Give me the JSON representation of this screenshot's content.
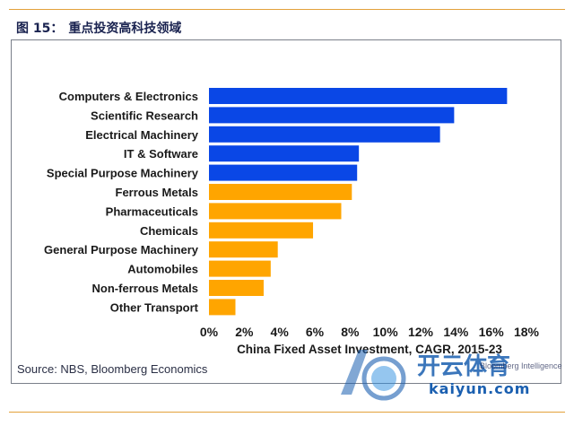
{
  "figure": {
    "number": "图 15：",
    "title": "重点投资高科技领域"
  },
  "source": "Source: NBS, Bloomberg Economics",
  "watermark": {
    "brand": "开云体育",
    "url": "kaiyun.com",
    "small": "Bloomberg Intelligence"
  },
  "colors": {
    "blue": "#0a47e6",
    "orange": "#ffa500",
    "axis_text": "#1a1a1a"
  },
  "chart_data": {
    "type": "bar",
    "orientation": "horizontal",
    "xlabel": "China Fixed Asset Investment, CAGR, 2015-23",
    "xlim": [
      0,
      18
    ],
    "xticks": [
      "0%",
      "2%",
      "4%",
      "6%",
      "8%",
      "10%",
      "12%",
      "14%",
      "16%",
      "18%"
    ],
    "grid": false,
    "categories": [
      "Computers & Electronics",
      "Scientific Research",
      "Electrical Machinery",
      "IT & Software",
      "Special Purpose Machinery",
      "Ferrous Metals",
      "Pharmaceuticals",
      "Chemicals",
      "General Purpose Machinery",
      "Automobiles",
      "Non-ferrous Metals",
      "Other Transport"
    ],
    "values": [
      16.9,
      13.9,
      13.1,
      8.5,
      8.4,
      8.1,
      7.5,
      5.9,
      3.9,
      3.5,
      3.1,
      1.5
    ],
    "bar_colors": [
      "blue",
      "blue",
      "blue",
      "blue",
      "blue",
      "orange",
      "orange",
      "orange",
      "orange",
      "orange",
      "orange",
      "orange"
    ]
  }
}
